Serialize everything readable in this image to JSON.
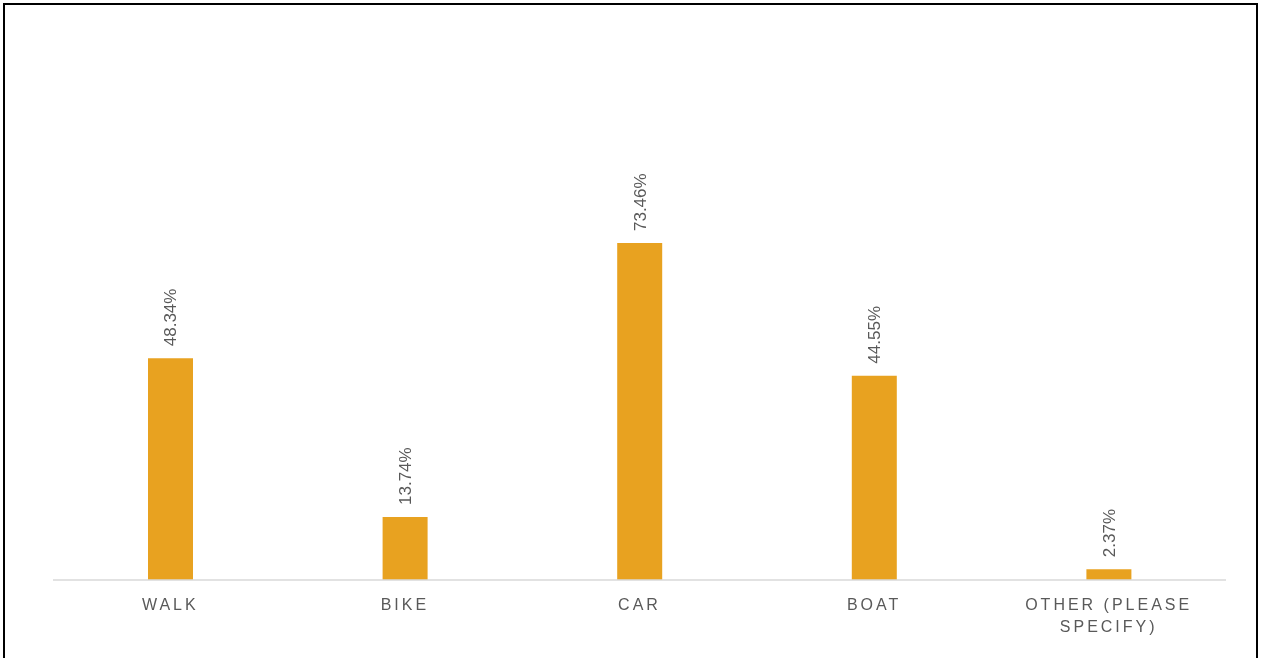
{
  "chart_data": {
    "type": "bar",
    "categories": [
      "WALK",
      "BIKE",
      "CAR",
      "BOAT",
      "OTHER (PLEASE SPECIFY)"
    ],
    "values": [
      48.34,
      13.74,
      73.46,
      44.55,
      2.37
    ],
    "value_labels": [
      "48.34%",
      "13.74%",
      "73.46%",
      "44.55%",
      "2.37%"
    ],
    "color": "#e8a220"
  }
}
